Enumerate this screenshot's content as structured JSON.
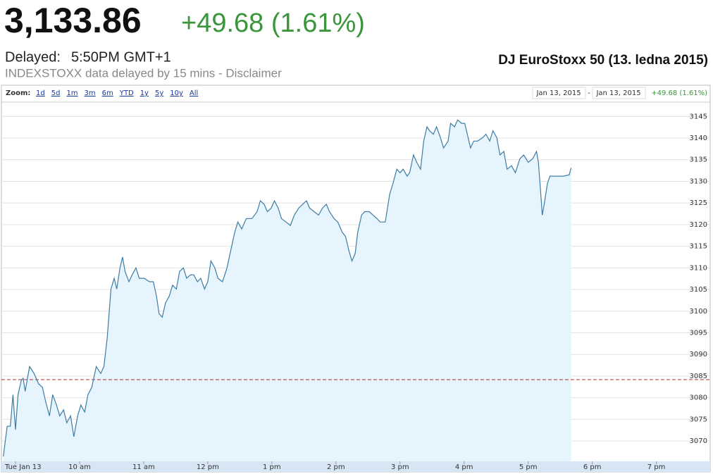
{
  "header": {
    "price": "3,133.86",
    "change": "+49.68 (1.61%)",
    "delayed_label": "Delayed:",
    "time": "5:50PM GMT+1",
    "source": "INDEXSTOXX data delayed by 15 mins - Disclaimer",
    "caption": "DJ EuroStoxx 50 (13. ledna 2015)"
  },
  "toolbar": {
    "zoom_label": "Zoom:",
    "zoom_options": [
      "1d",
      "5d",
      "1m",
      "3m",
      "6m",
      "YTD",
      "1y",
      "5y",
      "10y",
      "All"
    ],
    "date_from": "Jan 13, 2015",
    "separator": "-",
    "date_to": "Jan 13, 2015",
    "change": "+49.68 (1.61%)"
  },
  "chart_data": {
    "type": "line",
    "color": "#3f7ca3",
    "fill_color": "#e6f4fd",
    "grid": true,
    "previous_close": 3084.18,
    "previous_close_color": "#a0322d",
    "x": [
      8.81,
      8.87,
      8.92,
      8.96,
      9.0,
      9.04,
      9.09,
      9.12,
      9.15,
      9.22,
      9.29,
      9.36,
      9.42,
      9.47,
      9.53,
      9.58,
      9.64,
      9.69,
      9.75,
      9.8,
      9.86,
      9.91,
      9.97,
      10.02,
      10.08,
      10.13,
      10.19,
      10.26,
      10.33,
      10.38,
      10.43,
      10.49,
      10.54,
      10.58,
      10.63,
      10.67,
      10.71,
      10.77,
      10.82,
      10.88,
      10.93,
      11.01,
      11.09,
      11.15,
      11.2,
      11.24,
      11.29,
      11.34,
      11.4,
      11.45,
      11.51,
      11.56,
      11.62,
      11.67,
      11.73,
      11.78,
      11.84,
      11.89,
      11.95,
      12.0,
      12.05,
      12.11,
      12.16,
      12.23,
      12.3,
      12.36,
      12.42,
      12.47,
      12.53,
      12.6,
      12.69,
      12.77,
      12.82,
      12.88,
      12.93,
      12.99,
      13.04,
      13.1,
      13.15,
      13.22,
      13.29,
      13.35,
      13.42,
      13.48,
      13.54,
      13.59,
      13.66,
      13.73,
      13.79,
      13.85,
      13.9,
      13.97,
      14.03,
      14.1,
      14.15,
      14.2,
      14.25,
      14.3,
      14.34,
      14.4,
      14.45,
      14.52,
      14.58,
      14.64,
      14.69,
      14.77,
      14.84,
      14.89,
      14.95,
      15.0,
      15.05,
      15.11,
      15.15,
      15.21,
      15.26,
      15.32,
      15.37,
      15.42,
      15.46,
      15.52,
      15.57,
      15.63,
      15.68,
      15.75,
      15.79,
      15.85,
      15.9,
      15.96,
      16.01,
      16.05,
      16.1,
      16.15,
      16.21,
      16.29,
      16.34,
      16.4,
      16.45,
      16.51,
      16.56,
      16.62,
      16.67,
      16.74,
      16.8,
      16.87,
      16.93,
      17.0,
      17.07,
      17.13,
      17.16,
      17.2,
      17.22,
      17.25,
      17.3,
      17.34,
      17.44,
      17.55,
      17.64,
      17.67
    ],
    "values": [
      3066.4,
      3073.4,
      3073.4,
      3080.7,
      3072.6,
      3080.7,
      3084.0,
      3084.5,
      3081.5,
      3087.2,
      3085.6,
      3083.2,
      3082.4,
      3079.1,
      3075.8,
      3080.7,
      3078.3,
      3075.8,
      3077.2,
      3074.2,
      3075.8,
      3071.0,
      3075.8,
      3078.3,
      3076.7,
      3080.7,
      3082.4,
      3087.2,
      3085.6,
      3087.2,
      3093.7,
      3105.1,
      3107.6,
      3105.1,
      3110.0,
      3112.5,
      3109.2,
      3106.8,
      3108.4,
      3110.0,
      3107.6,
      3107.6,
      3106.8,
      3106.8,
      3103.5,
      3099.4,
      3098.6,
      3101.9,
      3103.5,
      3106.0,
      3105.1,
      3109.2,
      3110.0,
      3107.6,
      3108.4,
      3108.4,
      3106.8,
      3107.6,
      3105.1,
      3106.8,
      3111.6,
      3110.0,
      3107.6,
      3106.8,
      3110.0,
      3114.1,
      3118.2,
      3120.6,
      3119.0,
      3121.4,
      3121.4,
      3123.0,
      3125.5,
      3124.7,
      3123.0,
      3123.8,
      3125.5,
      3123.8,
      3121.4,
      3120.6,
      3119.8,
      3122.2,
      3123.8,
      3124.7,
      3125.5,
      3123.8,
      3123.0,
      3122.2,
      3123.8,
      3124.7,
      3123.0,
      3121.4,
      3120.6,
      3118.2,
      3117.3,
      3114.1,
      3111.6,
      3113.3,
      3118.2,
      3122.2,
      3123.0,
      3123.0,
      3122.2,
      3121.4,
      3120.6,
      3120.6,
      3127.1,
      3129.5,
      3132.8,
      3132.0,
      3132.8,
      3131.2,
      3132.0,
      3136.1,
      3134.4,
      3132.8,
      3139.3,
      3142.6,
      3141.7,
      3140.9,
      3142.6,
      3140.1,
      3137.7,
      3139.3,
      3143.4,
      3142.6,
      3144.2,
      3143.4,
      3143.4,
      3140.9,
      3137.7,
      3139.3,
      3139.3,
      3140.1,
      3140.9,
      3139.3,
      3141.7,
      3140.1,
      3136.1,
      3136.9,
      3132.8,
      3133.6,
      3132.0,
      3135.2,
      3136.1,
      3134.4,
      3135.2,
      3136.9,
      3134.4,
      3126.3,
      3122.2,
      3124.7,
      3129.5,
      3131.2,
      3131.2,
      3131.2,
      3131.5,
      3133.1
    ],
    "xlim": [
      8.78,
      19.84
    ],
    "xticks": [
      {
        "value": 9,
        "label": "Tue Jan 13"
      },
      {
        "value": 10,
        "label": "10 am"
      },
      {
        "value": 11,
        "label": "11 am"
      },
      {
        "value": 12,
        "label": "12 pm"
      },
      {
        "value": 13,
        "label": "1 pm"
      },
      {
        "value": 14,
        "label": "2 pm"
      },
      {
        "value": 15,
        "label": "3 pm"
      },
      {
        "value": 16,
        "label": "4 pm"
      },
      {
        "value": 17,
        "label": "5 pm"
      },
      {
        "value": 18,
        "label": "6 pm"
      },
      {
        "value": 19,
        "label": "7 pm"
      }
    ],
    "ylim": [
      3065.3,
      3148.3
    ],
    "yticks": [
      3070,
      3075,
      3080,
      3085,
      3090,
      3095,
      3100,
      3105,
      3110,
      3115,
      3120,
      3125,
      3130,
      3135,
      3140,
      3145
    ]
  }
}
